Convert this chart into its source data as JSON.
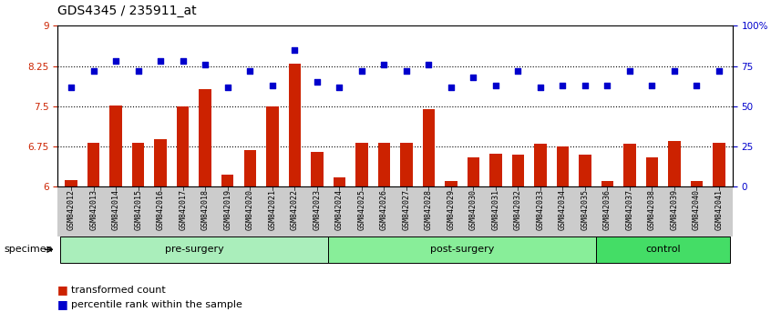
{
  "title": "GDS4345 / 235911_at",
  "categories": [
    "GSM842012",
    "GSM842013",
    "GSM842014",
    "GSM842015",
    "GSM842016",
    "GSM842017",
    "GSM842018",
    "GSM842019",
    "GSM842020",
    "GSM842021",
    "GSM842022",
    "GSM842023",
    "GSM842024",
    "GSM842025",
    "GSM842026",
    "GSM842027",
    "GSM842028",
    "GSM842029",
    "GSM842030",
    "GSM842031",
    "GSM842032",
    "GSM842033",
    "GSM842034",
    "GSM842035",
    "GSM842036",
    "GSM842037",
    "GSM842038",
    "GSM842039",
    "GSM842040",
    "GSM842041"
  ],
  "bar_values": [
    6.12,
    6.82,
    7.52,
    6.82,
    6.88,
    7.5,
    7.82,
    6.22,
    6.68,
    7.5,
    8.3,
    6.65,
    6.18,
    6.82,
    6.82,
    6.82,
    7.45,
    6.1,
    6.55,
    6.62,
    6.6,
    6.8,
    6.75,
    6.6,
    6.1,
    6.8,
    6.55,
    6.85,
    6.1,
    6.82
  ],
  "percentile_values": [
    62,
    72,
    78,
    72,
    78,
    78,
    76,
    62,
    72,
    63,
    85,
    65,
    62,
    72,
    76,
    72,
    76,
    62,
    68,
    63,
    72,
    62,
    63,
    63,
    63,
    72,
    63,
    72,
    63,
    72
  ],
  "ylim_left": [
    6.0,
    9.0
  ],
  "ylim_right": [
    0,
    100
  ],
  "yticks_left": [
    6.0,
    6.75,
    7.5,
    8.25,
    9.0
  ],
  "ytick_labels_left": [
    "6",
    "6.75",
    "7.5",
    "8.25",
    "9"
  ],
  "yticks_right": [
    0,
    25,
    50,
    75,
    100
  ],
  "ytick_labels_right": [
    "0",
    "25",
    "50",
    "75",
    "100%"
  ],
  "hlines": [
    6.75,
    7.5,
    8.25
  ],
  "bar_color": "#CC2200",
  "dot_color": "#0000CC",
  "gray_tickbg": "#CCCCCC",
  "group_colors": [
    "#AAEEBB",
    "#88EE99",
    "#44DD66"
  ],
  "group_labels": [
    "pre-surgery",
    "post-surgery",
    "control"
  ],
  "group_ranges": [
    [
      0,
      11
    ],
    [
      12,
      23
    ],
    [
      24,
      29
    ]
  ],
  "specimen_label": "specimen",
  "legend_bar_label": "transformed count",
  "legend_dot_label": "percentile rank within the sample",
  "title_fontsize": 10,
  "axis_fontsize": 8,
  "tick_fontsize": 7.5,
  "xlabel_fontsize": 6
}
